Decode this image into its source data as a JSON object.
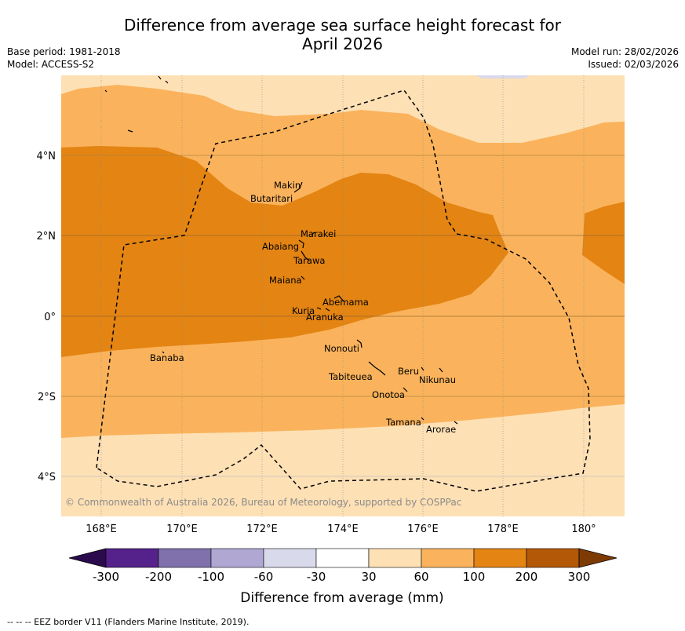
{
  "title_line1": "Difference from average sea surface height forecast for",
  "title_line2": "April 2026",
  "meta_left": {
    "base_period": "Base period: 1981-2018",
    "model": "Model: ACCESS-S2"
  },
  "meta_right": {
    "model_run": "Model run: 28/02/2026",
    "issued": "Issued: 02/03/2026"
  },
  "lat_labels": [
    "4°N",
    "2°N",
    "0°",
    "2°S",
    "4°S"
  ],
  "lon_labels": [
    "168°E",
    "170°E",
    "172°E",
    "174°E",
    "176°E",
    "178°E",
    "180°"
  ],
  "places": [
    "Makin",
    "Butaritari",
    "Marakei",
    "Abaiang",
    "Tarawa",
    "Maiana",
    "Abemama",
    "Kuria",
    "Aranuka",
    "Banaba",
    "Nonouti",
    "Beru",
    "Tabiteuea",
    "Nikunau",
    "Onotoa",
    "Tamana",
    "Arorae"
  ],
  "credit": "© Commonwealth of Australia 2026, Bureau of Meteorology, supported by COSPPac",
  "colorbar": {
    "ticks": [
      "-300",
      "-200",
      "-100",
      "-60",
      "-30",
      "30",
      "60",
      "100",
      "200",
      "300"
    ],
    "label": "Difference from average (mm)",
    "colors": [
      "#2c0a4e",
      "#54228a",
      "#8071ac",
      "#b0a8d3",
      "#d9d9ec",
      "#ffffff",
      "#fee0b5",
      "#fab35c",
      "#e38413",
      "#b35806",
      "#7e3a04"
    ]
  },
  "eez_note": "--  --  -- EEZ border V11 (Flanders Marine Institute, 2019)."
}
